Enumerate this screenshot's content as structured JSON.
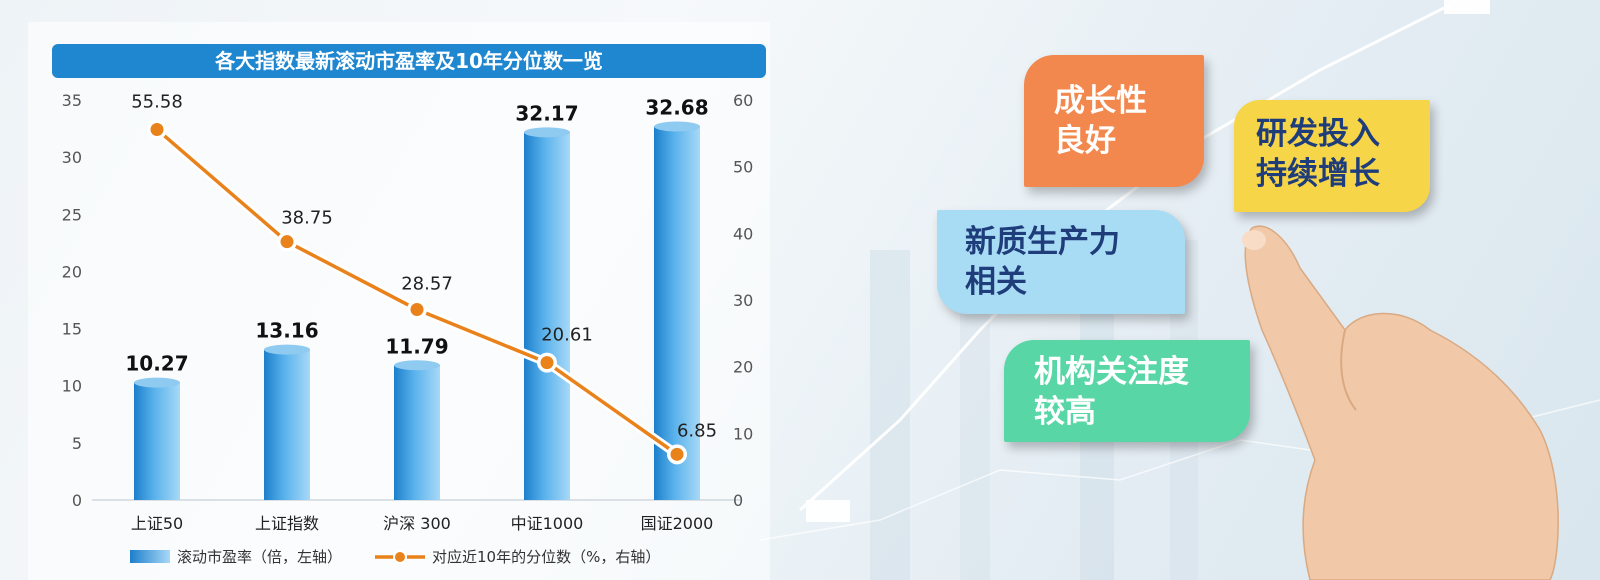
{
  "chart_data": {
    "type": "bar",
    "title": "各大指数最新滚动市盈率及10年分位数一览",
    "categories": [
      "上证50",
      "上证指数",
      "沪深 300",
      "中证1000",
      "国证2000"
    ],
    "series": [
      {
        "name": "滚动市盈率（倍，左轴）",
        "type": "bar",
        "axis": "left",
        "values": [
          10.27,
          13.16,
          11.79,
          32.17,
          32.68
        ],
        "labels": [
          "10.27",
          "13.16",
          "11.79",
          "32.17",
          "32.68"
        ]
      },
      {
        "name": "对应近10年的分位数（%，右轴）",
        "type": "line",
        "axis": "right",
        "values": [
          55.58,
          38.75,
          28.57,
          20.61,
          6.85
        ],
        "labels": [
          "55.58",
          "38.75",
          "28.57",
          "20.61",
          "6.85"
        ]
      }
    ],
    "y_left": {
      "range": [
        0,
        35
      ],
      "ticks": [
        "0",
        "5",
        "10",
        "15",
        "20",
        "25",
        "30",
        "35"
      ]
    },
    "y_right": {
      "range": [
        0,
        60
      ],
      "ticks": [
        "0",
        "10",
        "20",
        "30",
        "40",
        "50",
        "60"
      ]
    },
    "legend": "bottom",
    "grid": false,
    "colors": {
      "bar": "#2a93da",
      "line": "#e9821a",
      "title_bg": "#1f86d0"
    }
  },
  "tags": {
    "growth": [
      "成长性",
      "良好"
    ],
    "rd": [
      "研发投入",
      "持续增长"
    ],
    "quality": [
      "新质生产力",
      "相关"
    ],
    "institution": [
      "机构关注度",
      "较高"
    ]
  },
  "decoration": {
    "hand": "hand-pointing-icon"
  }
}
